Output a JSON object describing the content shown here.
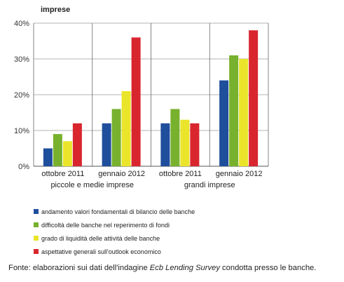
{
  "chart_data": {
    "type": "bar",
    "ylabel": "imprese",
    "ylim": [
      0,
      40
    ],
    "yticks": [
      "0%",
      "10%",
      "20%",
      "30%",
      "40%"
    ],
    "grid": true,
    "legend_position": "bottom",
    "categories": [
      "ottobre 2011",
      "gennaio 2012",
      "ottobre 2011",
      "gennaio 2012"
    ],
    "groups": [
      {
        "label": "piccole e medie imprese",
        "categories": [
          "ottobre 2011",
          "gennaio 2012"
        ]
      },
      {
        "label": "grandi imprese",
        "categories": [
          "ottobre 2011",
          "gennaio 2012"
        ]
      }
    ],
    "series": [
      {
        "name": "andamento valori fondamentali di bilancio delle banche",
        "color": "#1f4e9c",
        "values": [
          5,
          12,
          12,
          24
        ]
      },
      {
        "name": "difficoltà delle banche nel reperimento di fondi",
        "color": "#77b12e",
        "values": [
          9,
          16,
          16,
          31
        ]
      },
      {
        "name": "grado di liquidità delle attività delle banche",
        "color": "#eae52a",
        "values": [
          7,
          21,
          13,
          30
        ]
      },
      {
        "name": "aspettative generali sull'outlook economico",
        "color": "#d9262e",
        "values": [
          12,
          36,
          12,
          38
        ]
      }
    ]
  },
  "source": {
    "prefix": "Fonte: elaborazioni sui dati dell'indagine ",
    "italic": "Ecb Lending Survey",
    "suffix": " condotta presso le banche."
  }
}
